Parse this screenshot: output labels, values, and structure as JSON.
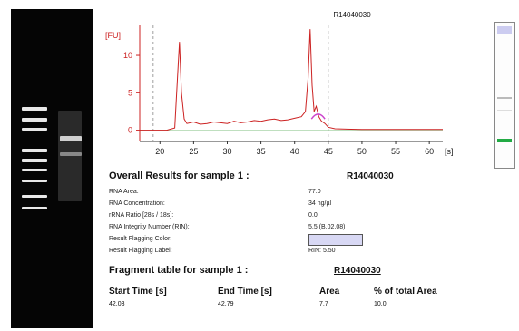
{
  "colors": {
    "accent_red": "#cc2222",
    "flag_color": "#d8d8f4",
    "lane_green": "#22aa44",
    "lane_blue": "#5566cc"
  },
  "electropherogram": {
    "title": "R14040030",
    "ylabel": "[FU]"
  },
  "chart_data": {
    "type": "line",
    "title": "R14040030",
    "xlabel": "",
    "ylabel": "[FU]",
    "x_unit": "[s]",
    "xlim": [
      17,
      62
    ],
    "ylim": [
      -1.5,
      14
    ],
    "xticks": [
      20,
      25,
      30,
      35,
      40,
      45,
      50,
      55,
      60
    ],
    "yticks": [
      0,
      5,
      10
    ],
    "grid": false,
    "series": [
      {
        "color": "#cc2222",
        "x": [
          17,
          21,
          22.2,
          22.6,
          22.9,
          23.2,
          23.6,
          24,
          25,
          26,
          27,
          28,
          29,
          30,
          31,
          32,
          33,
          34,
          35,
          36,
          37,
          38,
          39,
          40,
          41,
          41.6,
          42,
          42.3,
          42.6,
          42.9,
          43.2,
          43.6,
          44,
          44.5,
          45,
          46,
          50,
          55,
          60,
          62
        ],
        "y": [
          0,
          0,
          0.3,
          7,
          11.8,
          5,
          1.5,
          0.9,
          1.1,
          0.8,
          0.9,
          1.1,
          1.0,
          0.9,
          1.2,
          1.0,
          1.1,
          1.3,
          1.2,
          1.4,
          1.5,
          1.3,
          1.4,
          1.6,
          1.8,
          2.5,
          7,
          13.5,
          6,
          2.5,
          3.2,
          1.8,
          1.2,
          0.9,
          0.4,
          0.2,
          0.1,
          0.1,
          0.1,
          0.1
        ]
      }
    ],
    "markers": [
      19,
      42,
      45,
      61
    ]
  },
  "results": {
    "overall_title": "Overall Results for sample 1  :",
    "sample_name": "R14040030",
    "rows": [
      {
        "label": "RNA Area:",
        "value": "77.0"
      },
      {
        "label": "RNA Concentration:",
        "value": "34 ng/µl"
      },
      {
        "label": "rRNA Ratio [28s / 18s]:",
        "value": "0.0"
      },
      {
        "label": "RNA Integrity Number (RIN):",
        "value": "5.5   (B.02.08)"
      },
      {
        "label": "Result Flagging Color:",
        "value": ""
      },
      {
        "label": "Result Flagging Label:",
        "value": "RIN: 5.50"
      }
    ],
    "fragment_title": "Fragment table for sample 1  :",
    "fragment_sample": "R14040030",
    "fragment_table": {
      "headers": [
        "Start Time [s]",
        "End Time [s]",
        "Area",
        "% of total Area"
      ],
      "values": [
        "42.03",
        "42.79",
        "7.7",
        "10.0"
      ]
    }
  }
}
